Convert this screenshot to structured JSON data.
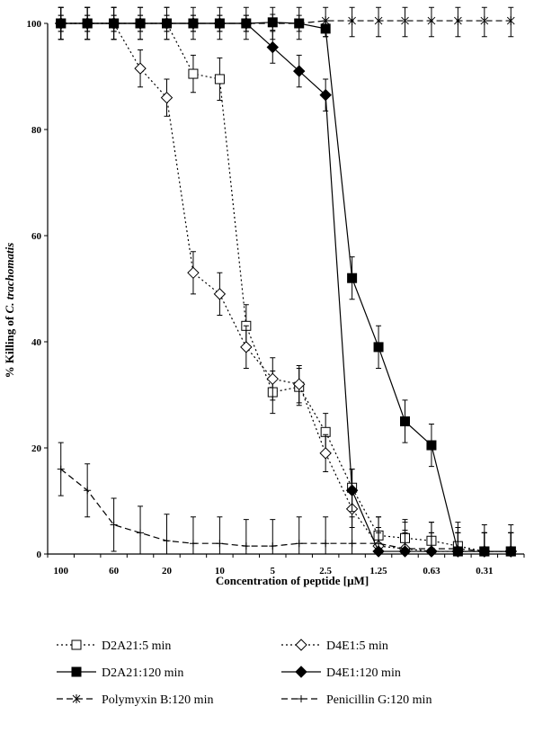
{
  "chart_data": {
    "type": "line",
    "title": "",
    "xlabel": "Concentration of peptide [µM]",
    "ylabel_prefix": "% Killing of ",
    "ylabel_italic": "C. trachomatis",
    "x": [
      100,
      80,
      60,
      40,
      20,
      15,
      10,
      7.5,
      5,
      3.75,
      2.5,
      1.875,
      1.25,
      0.94,
      0.63,
      0.47,
      0.31,
      0.23
    ],
    "x_tick_labels": [
      "100",
      "60",
      "20",
      "10",
      "5",
      "2.5",
      "1.25",
      "0.63",
      "0.31"
    ],
    "y_ticks": [
      0,
      20,
      40,
      60,
      80,
      100
    ],
    "ylim": [
      0,
      100
    ],
    "grid": false,
    "legend_position": "bottom",
    "series": [
      {
        "name": "D2A21:5 min",
        "marker": "open-square",
        "line": "dotted",
        "color": "#000000",
        "values": [
          100,
          100,
          100,
          100,
          100,
          90.5,
          89.5,
          43,
          30.5,
          31.5,
          23,
          12.5,
          3.5,
          3,
          2.5,
          1.5,
          0.5,
          0.5
        ],
        "errors": [
          3,
          3,
          3,
          3,
          3,
          3.5,
          4,
          4,
          4,
          3.5,
          3.5,
          3.5,
          3.5,
          3.5,
          3.5,
          3.5,
          3.5,
          3.5
        ]
      },
      {
        "name": "D4E1:5 min",
        "marker": "open-diamond",
        "line": "dotted",
        "color": "#000000",
        "values": [
          100,
          100,
          100,
          91.5,
          86,
          53,
          49,
          39,
          33,
          32,
          19,
          8.5,
          1.5,
          1,
          0.5,
          0.5,
          0.5,
          0.5
        ],
        "errors": [
          3,
          3,
          3,
          3.5,
          3.5,
          4,
          4,
          4,
          4,
          3.5,
          3.5,
          3.5,
          3.5,
          3.5,
          3.5,
          3.5,
          3.5,
          3.5
        ]
      },
      {
        "name": "D2A21:120 min",
        "marker": "filled-square",
        "line": "solid",
        "color": "#000000",
        "values": [
          100,
          100,
          100,
          100,
          100,
          100,
          100,
          100,
          100.2,
          100,
          99,
          52,
          39,
          25,
          20.5,
          0.5,
          0.5,
          0.5
        ],
        "errors": [
          1.5,
          1.5,
          1.5,
          1.5,
          1.5,
          1.5,
          1.5,
          1.5,
          1.5,
          1.5,
          1.5,
          4,
          4,
          4,
          4,
          3.5,
          3.5,
          3.5
        ]
      },
      {
        "name": "D4E1:120 min",
        "marker": "filled-diamond",
        "line": "solid",
        "color": "#000000",
        "values": [
          100,
          100,
          100,
          100,
          100,
          100,
          100,
          100,
          95.5,
          91,
          86.5,
          12,
          0.5,
          0.5,
          0.5,
          0.5,
          0.5,
          0.5
        ],
        "errors": [
          1.5,
          1.5,
          1.5,
          1.5,
          1.5,
          1.5,
          1.5,
          1.5,
          3,
          3,
          3,
          4,
          3.5,
          3.5,
          3.5,
          3.5,
          3.5,
          3.5
        ]
      },
      {
        "name": "Polymyxin B:120 min",
        "marker": "star",
        "line": "dashed",
        "color": "#000000",
        "values": [
          100,
          100,
          100,
          100,
          100,
          100,
          100,
          100,
          100,
          100,
          100.5,
          100.5,
          100.5,
          100.5,
          100.5,
          100.5,
          100.5,
          100.5
        ],
        "errors": [
          3,
          3,
          3,
          3,
          3,
          3,
          3,
          3,
          3,
          3,
          3,
          3,
          3,
          3,
          3,
          3,
          3,
          3
        ]
      },
      {
        "name": "Penicillin G:120 min",
        "marker": "plus",
        "line": "dashed",
        "color": "#000000",
        "values": [
          16,
          12,
          5.5,
          4,
          2.5,
          2,
          2,
          1.5,
          1.5,
          2,
          2,
          2,
          2,
          1,
          1,
          1,
          0.5,
          0.5
        ],
        "errors": [
          5,
          5,
          5,
          5,
          5,
          5,
          5,
          5,
          5,
          5,
          5,
          5,
          5,
          5,
          5,
          5,
          5,
          5
        ]
      }
    ]
  }
}
